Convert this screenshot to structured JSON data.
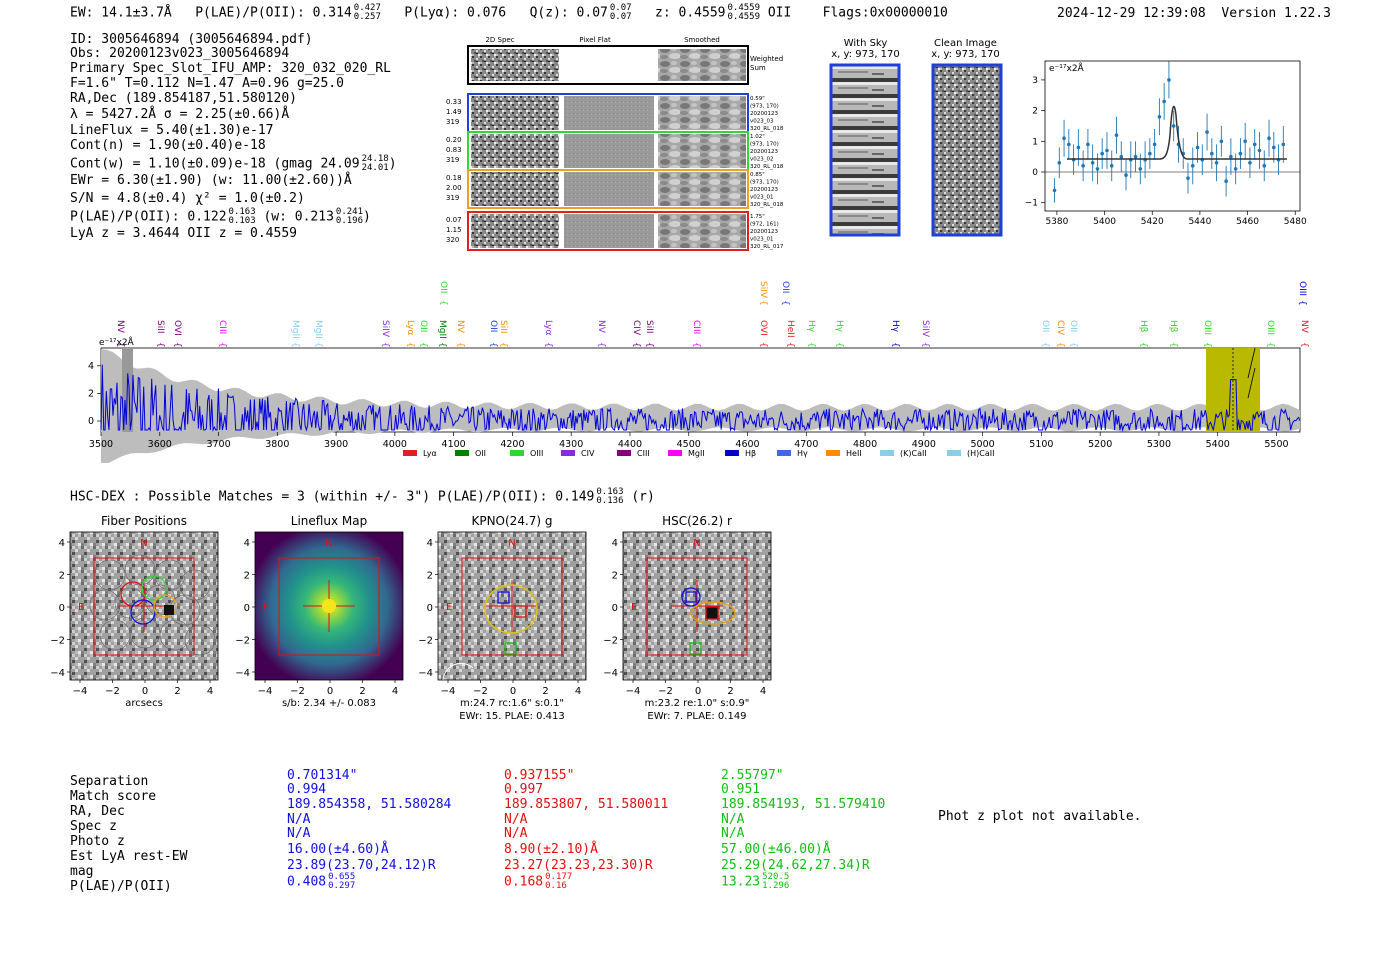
{
  "header": {
    "ew": "EW: 14.1±3.7Å",
    "plae_label": "P(LAE)/P(OII): 0.314",
    "plae_hi": "0.427",
    "plae_lo": "0.257",
    "plya": "P(Lyα): 0.076",
    "qz_label": "Q(z): 0.07",
    "qz_hi": "0.07",
    "qz_lo": "0.07",
    "z_label": "z: 0.4559",
    "z_hi": "0.4559",
    "z_lo": "0.4559",
    "z_line": "OII",
    "flags": "Flags:0x00000010",
    "timestamp": "2024-12-29 12:39:08",
    "version": "Version 1.22.3"
  },
  "info": {
    "id": "ID: 3005646894 (3005646894.pdf)",
    "obs": "Obs: 20200123v023_3005646894",
    "primary": "Primary Spec_Slot_IFU_AMP: 320_032_020_RL",
    "params": "F=1.6\"  T=0.112  N=1.47  A=0.96  g=25.0",
    "radec": "RA,Dec (189.854187,51.580120)",
    "lambda": "λ = 5427.2Å   σ = 2.25(±0.66)Å",
    "lineflux": "LineFlux = 5.40(±1.30)e-17",
    "contn": "Cont(n) = 1.90(±0.40)e-18",
    "contw": "Cont(w) = 1.10(±0.09)e-18 (gmag 24.09",
    "contw_hi": "24.18",
    "contw_lo": "24.01",
    "ewr": "EWr = 6.30(±1.90) (w: 11.00(±2.60))Å",
    "sn": "S/N = 4.8(±0.4)  χ² = 1.0(±0.2)",
    "plae": "P(LAE)/P(OII): 0.122",
    "plae_hi": "0.163",
    "plae_lo": "0.103",
    "plae_w": "(w: 0.213",
    "plae_w_hi": "0.241",
    "plae_w_lo": "0.196",
    "lyaz": "LyA z = 3.4644   OII z = 0.4559"
  },
  "cutouts": {
    "col_2d": "2D Spec",
    "col_pf": "Pixel Flat",
    "col_sm": "Smoothed",
    "weighted": "Weighted Sum",
    "rows": [
      {
        "v1": "0.33",
        "v2": "1.49",
        "v3": "319",
        "r1": "0.59\"",
        "r2": "(973, 170)",
        "r3": "20200123",
        "r4": "v023_03",
        "r5": "320_RL_018",
        "color": "#1f3fd8"
      },
      {
        "v1": "0.20",
        "v2": "0.83",
        "v3": "319",
        "r1": "1.02\"",
        "r2": "(973, 170)",
        "r3": "20200123",
        "r4": "v023_02",
        "r5": "320_RL_018",
        "color": "#2ed82e"
      },
      {
        "v1": "0.18",
        "v2": "2.00",
        "v3": "319",
        "r1": "0.85\"",
        "r2": "(973, 170)",
        "r3": "20200123",
        "r4": "v023_01",
        "r5": "320_RL_018",
        "color": "#f0a020"
      },
      {
        "v1": "0.07",
        "v2": "1.15",
        "v3": "320",
        "r1": "1.75\"",
        "r2": "(972, 161)",
        "r3": "20200123",
        "r4": "v023_01",
        "r5": "320_RL_017",
        "color": "#e02020"
      }
    ],
    "with_sky": "With Sky",
    "with_sky_xy": "x, y: 973, 170",
    "clean": "Clean Image",
    "clean_xy": "x, y: 973, 170"
  },
  "zoom_chart": {
    "unit": "e⁻¹⁷x2Å",
    "xticks": [
      "5380",
      "5400",
      "5420",
      "5440",
      "5460",
      "5480"
    ],
    "yticks": [
      "3",
      "2",
      "1",
      "0",
      "−1"
    ]
  },
  "spectrum": {
    "unit": "e⁻¹⁷x2Å",
    "xticks": [
      "3500",
      "3600",
      "3700",
      "3800",
      "3900",
      "4000",
      "4100",
      "4200",
      "4300",
      "4400",
      "4500",
      "4600",
      "4700",
      "4800",
      "4900",
      "5000",
      "5100",
      "5200",
      "5300",
      "5400",
      "5500"
    ],
    "yticks": [
      "4",
      "2",
      "0"
    ],
    "lines_top": [
      {
        "n": "NV",
        "c": "#800080"
      },
      {
        "n": "SiII",
        "c": "#800080"
      },
      {
        "n": "OVI",
        "c": "#800080"
      },
      {
        "n": "CIII",
        "c": "#ff00ff"
      },
      {
        "n": "MgII",
        "c": "#87ceeb"
      },
      {
        "n": "MgII",
        "c": "#87ceeb"
      },
      {
        "n": "SiIV",
        "c": "#8a2be2"
      },
      {
        "n": "Lyα",
        "c": "#ff8c00"
      },
      {
        "n": "OII",
        "c": "#2ed82e"
      },
      {
        "n": "MgII",
        "c": "#008000"
      },
      {
        "n": "NV",
        "c": "#ff8c00"
      },
      {
        "n": "OII",
        "c": "#1f3fd8"
      },
      {
        "n": "SiII",
        "c": "#ff8c00"
      },
      {
        "n": "Lyα",
        "c": "#8a2be2"
      },
      {
        "n": "NV",
        "c": "#8a2be2"
      },
      {
        "n": "CIV",
        "c": "#800080"
      },
      {
        "n": "SiII",
        "c": "#800080"
      },
      {
        "n": "CIII",
        "c": "#ff00ff"
      },
      {
        "n": "OVI",
        "c": "#e02020"
      },
      {
        "n": "HeII",
        "c": "#e02020"
      },
      {
        "n": "Hγ",
        "c": "#2ed82e"
      },
      {
        "n": "Hγ",
        "c": "#2ed82e"
      },
      {
        "n": "Hγ",
        "c": "#0000cd"
      },
      {
        "n": "SiIV",
        "c": "#8a2be2"
      },
      {
        "n": "OII",
        "c": "#87ceeb"
      },
      {
        "n": "CIV",
        "c": "#ff8c00"
      },
      {
        "n": "OII",
        "c": "#87ceeb"
      },
      {
        "n": "Hβ",
        "c": "#2ed82e"
      },
      {
        "n": "Hβ",
        "c": "#2ed82e"
      },
      {
        "n": "OIII",
        "c": "#2ed82e"
      },
      {
        "n": "OIII",
        "c": "#2ed82e"
      },
      {
        "n": "NV",
        "c": "#e02020"
      }
    ],
    "lines_high": [
      {
        "n": "OII",
        "c": "#2ed82e"
      },
      {
        "n": "SiIV",
        "c": "#ff8c00"
      },
      {
        "n": "OII",
        "c": "#1f3fd8"
      },
      {
        "n": "OIII",
        "c": "#0000cd"
      }
    ],
    "legend": [
      {
        "n": "Lyα",
        "c": "#e02020"
      },
      {
        "n": "OII",
        "c": "#008000"
      },
      {
        "n": "OIII",
        "c": "#2ed82e"
      },
      {
        "n": "CIV",
        "c": "#8a2be2"
      },
      {
        "n": "CIII",
        "c": "#800080"
      },
      {
        "n": "MgII",
        "c": "#ff00ff"
      },
      {
        "n": "Hβ",
        "c": "#0000cd"
      },
      {
        "n": "Hγ",
        "c": "#4169e1"
      },
      {
        "n": "HeII",
        "c": "#ff8c00"
      },
      {
        "n": "(K)CaII",
        "c": "#87ceeb"
      },
      {
        "n": "(H)CaII",
        "c": "#87ceeb"
      }
    ]
  },
  "hsc": {
    "title": "HSC-DEX : Possible Matches = 3 (within +/- 3\")  P(LAE)/P(OII): 0.149",
    "hi": "0.163",
    "lo": "0.136",
    "band": "(r)"
  },
  "panels": [
    {
      "title": "Fiber Positions",
      "cap1": "arcsecs",
      "cap2": ""
    },
    {
      "title": "Lineflux Map",
      "cap1": "s/b: 2.34 +/- 0.083",
      "cap2": ""
    },
    {
      "title": "KPNO(24.7) g",
      "cap1": "m:24.7 rc:1.6\"  s:0.1\"",
      "cap2": "EWr: 15. PLAE: 0.413"
    },
    {
      "title": "HSC(26.2) r",
      "cap1": "m:23.2  re:1.0\"  s:0.9\"",
      "cap2": "EWr: 7. PLAE: 0.149"
    }
  ],
  "panel_axis": {
    "ticks": [
      "4",
      "2",
      "0",
      "−2",
      "−4"
    ],
    "xticks": [
      "−4",
      "−2",
      "0",
      "2",
      "4"
    ],
    "n": "N",
    "e": "E"
  },
  "match_table": {
    "labels": [
      "Separation",
      "Match score",
      "RA, Dec",
      "Spec z",
      "Photo z",
      "Est LyA rest-EW",
      "mag",
      "P(LAE)/P(OII)"
    ],
    "cols": [
      {
        "color": "#1010e0",
        "vals": [
          "0.701314\"",
          "0.994",
          "189.854358, 51.580284",
          "N/A",
          "N/A",
          "16.00(±4.60)Å",
          "23.89(23.70,24.12)R",
          "0.408"
        ],
        "hi": "0.655",
        "lo": "0.297"
      },
      {
        "color": "#e01010",
        "vals": [
          "0.937155\"",
          "0.997",
          "189.853807, 51.580011",
          "N/A",
          "N/A",
          "8.90(±2.10)Å",
          "23.27(23.23,23.30)R",
          "0.168"
        ],
        "hi": "0.177",
        "lo": "0.16"
      },
      {
        "color": "#10c010",
        "vals": [
          "2.55797\"",
          "0.951",
          "189.854193, 51.579410",
          "N/A",
          "N/A",
          "57.00(±46.00)Å",
          "25.29(24.62,27.34)R",
          "13.23"
        ],
        "hi": "520.5",
        "lo": "1.296"
      }
    ],
    "photz": "Phot z plot not available."
  },
  "colors": {
    "blue": "#1010e0",
    "red": "#e01010",
    "green": "#10c010",
    "olive": "#b9b900"
  }
}
